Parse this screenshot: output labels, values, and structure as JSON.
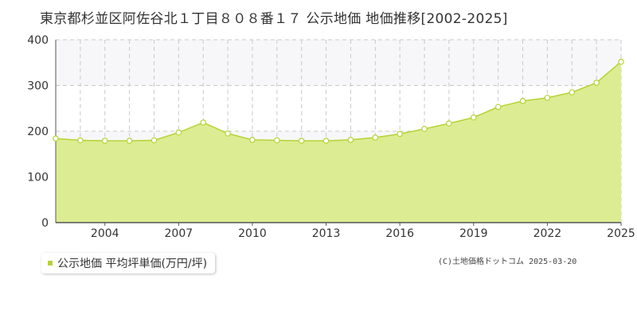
{
  "title": "東京都杉並区阿佐谷北１丁目８０８番１７ 公示地価 地価推移[2002-2025]",
  "legend_label": "公示地価 平均坪単価(万円/坪)",
  "credit": "(C)土地価格ドットコム 2025-03-20",
  "colors": {
    "fill": "#dcec92",
    "line": "#b5d334",
    "band": "#f7f7f9",
    "grid": "#c8c8c8",
    "axis": "#555555"
  },
  "chart_data": {
    "type": "area",
    "title": "東京都杉並区阿佐谷北１丁目８０８番１７ 公示地価 地価推移[2002-2025]",
    "xlabel": "",
    "ylabel": "",
    "xlim": [
      2002,
      2025
    ],
    "ylim": [
      0,
      400
    ],
    "yticks": [
      0,
      100,
      200,
      300,
      400
    ],
    "xticks": [
      2004,
      2007,
      2010,
      2013,
      2016,
      2019,
      2022,
      2025
    ],
    "grid": true,
    "legend": "bottom-left",
    "series": [
      {
        "name": "公示地価 平均坪単価(万円/坪)",
        "x": [
          2002,
          2003,
          2004,
          2005,
          2006,
          2007,
          2008,
          2009,
          2010,
          2011,
          2012,
          2013,
          2014,
          2015,
          2016,
          2017,
          2018,
          2019,
          2020,
          2021,
          2022,
          2023,
          2024,
          2025
        ],
        "values": [
          184,
          180,
          179,
          179,
          180,
          197,
          219,
          195,
          181,
          180,
          179,
          179,
          181,
          186,
          194,
          205,
          217,
          230,
          253,
          266,
          273,
          285,
          306,
          352
        ]
      }
    ]
  }
}
